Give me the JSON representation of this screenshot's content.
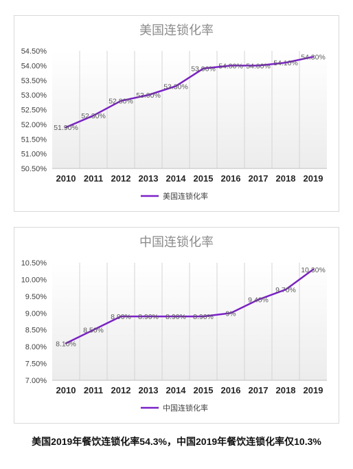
{
  "chart_data": [
    {
      "type": "line",
      "title": "美国连锁化率",
      "categories": [
        "2010",
        "2011",
        "2012",
        "2013",
        "2014",
        "2015",
        "2016",
        "2017",
        "2018",
        "2019"
      ],
      "series": [
        {
          "name": "美国连锁化率",
          "values": [
            51.9,
            52.3,
            52.8,
            53.0,
            53.3,
            53.9,
            54.0,
            54.0,
            54.1,
            54.3
          ],
          "labels": [
            "51.90%",
            "52.30%",
            "52.80%",
            "53.00%",
            "53.30%",
            "53.90%",
            "54.00%",
            "54.00%",
            "54.10%",
            "54.30%"
          ]
        }
      ],
      "ylim": [
        50.5,
        54.5
      ],
      "yticks": [
        50.5,
        51.0,
        51.5,
        52.0,
        52.5,
        53.0,
        53.5,
        54.0,
        54.5
      ],
      "ytick_labels": [
        "50.50%",
        "51.00%",
        "51.50%",
        "52.00%",
        "52.50%",
        "53.00%",
        "53.50%",
        "54.00%",
        "54.50%"
      ],
      "line_color": "#7b1fc9",
      "legend": "bottom-center",
      "grid": false
    },
    {
      "type": "line",
      "title": "中国连锁化率",
      "categories": [
        "2010",
        "2011",
        "2012",
        "2013",
        "2014",
        "2015",
        "2016",
        "2017",
        "2018",
        "2019"
      ],
      "series": [
        {
          "name": "中国连锁化率",
          "values": [
            8.1,
            8.5,
            8.9,
            8.9,
            8.9,
            8.9,
            9.0,
            9.4,
            9.7,
            10.3
          ],
          "labels": [
            "8.10%",
            "8.50%",
            "8.90%",
            "8.90%",
            "8.90%",
            "8.90%",
            "9%",
            "9.40%",
            "9.70%",
            "10.30%"
          ]
        }
      ],
      "ylim": [
        7.0,
        10.5
      ],
      "yticks": [
        7.0,
        7.5,
        8.0,
        8.5,
        9.0,
        9.5,
        10.0,
        10.5
      ],
      "ytick_labels": [
        "7.00%",
        "7.50%",
        "8.00%",
        "8.50%",
        "9.00%",
        "9.50%",
        "10.00%",
        "10.50%"
      ],
      "line_color": "#7b1fc9",
      "legend": "bottom-center",
      "grid": false
    }
  ],
  "caption": "美国2019年餐饮连锁化率54.3%，中国2019年餐饮连锁化率仅10.3%"
}
